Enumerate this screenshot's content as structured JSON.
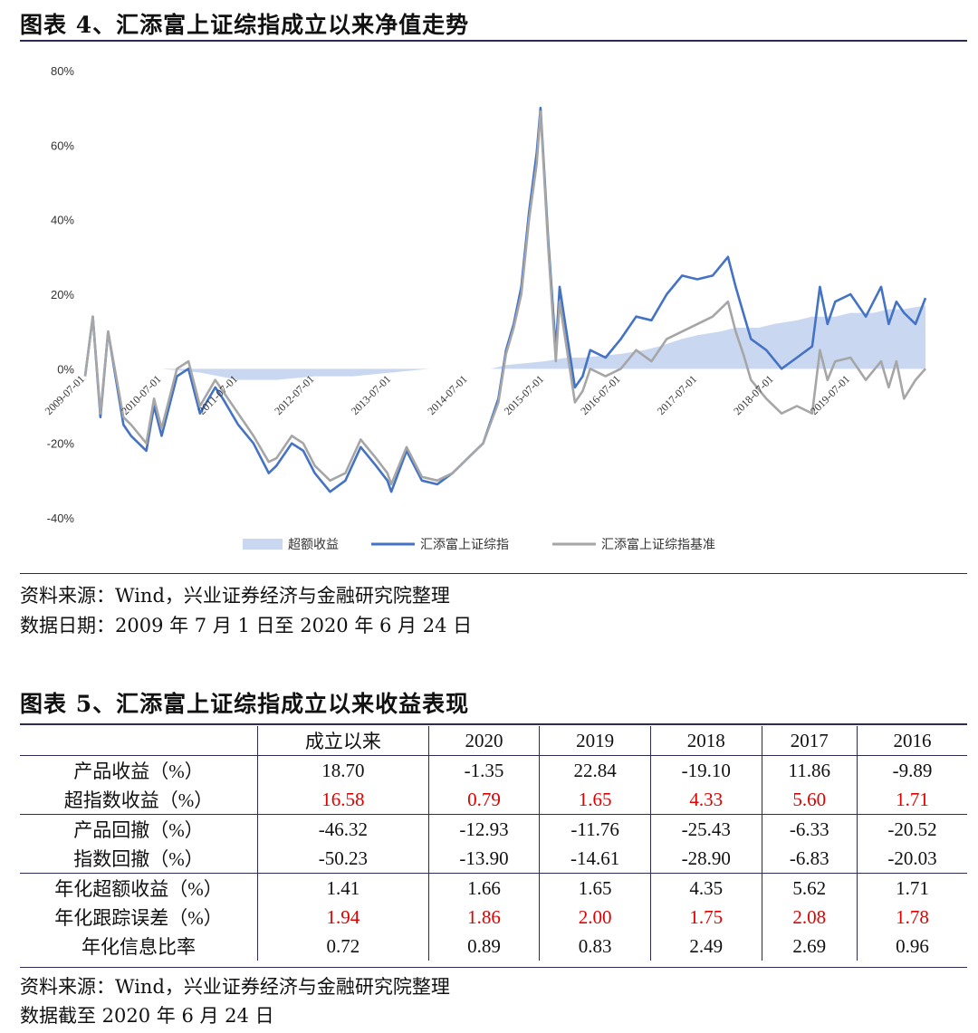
{
  "fig4": {
    "title": "图表 4、汇添富上证综指成立以来净值走势",
    "source": "资料来源：Wind，兴业证券经济与金融研究院整理",
    "date_note": "数据日期：2009 年 7 月 1 日至 2020 年 6 月 24 日"
  },
  "chart_data": {
    "type": "line",
    "title": "",
    "xlabel": "",
    "ylabel": "",
    "ylim": [
      -0.4,
      0.8
    ],
    "y_ticks": [
      "80%",
      "60%",
      "40%",
      "20%",
      "0%",
      "-20%",
      "-40%"
    ],
    "y_tick_values": [
      0.8,
      0.6,
      0.4,
      0.2,
      0.0,
      -0.2,
      -0.4
    ],
    "x_ticks": [
      "2009-07-01",
      "2010-07-01",
      "2011-07-01",
      "2012-07-01",
      "2013-07-01",
      "2014-07-01",
      "2015-07-01",
      "2016-07-01",
      "2017-07-01",
      "2018-07-01",
      "2019-07-01"
    ],
    "x_tick_values": [
      2009.5,
      2010.5,
      2011.5,
      2012.5,
      2013.5,
      2014.5,
      2015.5,
      2016.5,
      2017.5,
      2018.5,
      2019.5
    ],
    "xlim": [
      2009.5,
      2020.48
    ],
    "legend_position": "bottom",
    "colors": {
      "excess": "#c9d8f0",
      "fund": "#4472c4",
      "benchmark": "#a6a6a6"
    },
    "series": [
      {
        "name": "超额收益",
        "kind": "area",
        "x": [
          2009.5,
          2010.0,
          2010.5,
          2011.0,
          2011.5,
          2012.0,
          2012.5,
          2013.0,
          2013.5,
          2014.0,
          2014.5,
          2014.8,
          2015.0,
          2015.5,
          2015.8,
          2016.0,
          2016.5,
          2016.8,
          2017.0,
          2017.3,
          2017.5,
          2017.8,
          2018.0,
          2018.3,
          2018.5,
          2018.8,
          2019.0,
          2019.3,
          2019.5,
          2019.8,
          2020.0,
          2020.2,
          2020.48
        ],
        "y": [
          0.0,
          0.0,
          0.0,
          -0.01,
          -0.03,
          -0.03,
          -0.02,
          -0.02,
          -0.01,
          0.0,
          0.0,
          0.0,
          0.01,
          0.02,
          0.03,
          0.03,
          0.04,
          0.05,
          0.06,
          0.08,
          0.09,
          0.1,
          0.11,
          0.11,
          0.12,
          0.13,
          0.14,
          0.14,
          0.15,
          0.15,
          0.16,
          0.16,
          0.17
        ]
      },
      {
        "name": "汇添富上证综指",
        "kind": "line",
        "x": [
          2009.5,
          2009.6,
          2009.7,
          2009.8,
          2010.0,
          2010.1,
          2010.3,
          2010.4,
          2010.5,
          2010.7,
          2010.85,
          2011.0,
          2011.2,
          2011.3,
          2011.5,
          2011.7,
          2011.9,
          2012.0,
          2012.2,
          2012.35,
          2012.5,
          2012.7,
          2012.9,
          2013.1,
          2013.3,
          2013.45,
          2013.5,
          2013.7,
          2013.9,
          2014.1,
          2014.3,
          2014.5,
          2014.7,
          2014.9,
          2015.0,
          2015.1,
          2015.2,
          2015.3,
          2015.4,
          2015.45,
          2015.55,
          2015.65,
          2015.7,
          2015.9,
          2016.0,
          2016.1,
          2016.3,
          2016.5,
          2016.7,
          2016.9,
          2017.1,
          2017.3,
          2017.5,
          2017.7,
          2017.9,
          2018.0,
          2018.1,
          2018.2,
          2018.4,
          2018.6,
          2018.8,
          2019.0,
          2019.1,
          2019.2,
          2019.3,
          2019.5,
          2019.7,
          2019.9,
          2020.0,
          2020.1,
          2020.2,
          2020.35,
          2020.48
        ],
        "y": [
          -0.02,
          0.14,
          -0.13,
          0.1,
          -0.15,
          -0.18,
          -0.22,
          -0.1,
          -0.18,
          -0.02,
          0.0,
          -0.12,
          -0.05,
          -0.08,
          -0.15,
          -0.2,
          -0.28,
          -0.26,
          -0.2,
          -0.22,
          -0.28,
          -0.33,
          -0.3,
          -0.21,
          -0.26,
          -0.3,
          -0.33,
          -0.22,
          -0.3,
          -0.31,
          -0.28,
          -0.24,
          -0.2,
          -0.08,
          0.05,
          0.12,
          0.22,
          0.42,
          0.58,
          0.7,
          0.35,
          0.05,
          0.22,
          -0.05,
          -0.02,
          0.05,
          0.03,
          0.08,
          0.14,
          0.13,
          0.2,
          0.25,
          0.24,
          0.25,
          0.3,
          0.22,
          0.15,
          0.08,
          0.05,
          0.0,
          0.03,
          0.06,
          0.22,
          0.12,
          0.18,
          0.2,
          0.14,
          0.22,
          0.12,
          0.18,
          0.15,
          0.12,
          0.19
        ]
      },
      {
        "name": "汇添富上证综指基准",
        "kind": "line",
        "x": [
          2009.5,
          2009.6,
          2009.7,
          2009.8,
          2010.0,
          2010.1,
          2010.3,
          2010.4,
          2010.5,
          2010.7,
          2010.85,
          2011.0,
          2011.2,
          2011.3,
          2011.5,
          2011.7,
          2011.9,
          2012.0,
          2012.2,
          2012.35,
          2012.5,
          2012.7,
          2012.9,
          2013.1,
          2013.3,
          2013.45,
          2013.5,
          2013.7,
          2013.9,
          2014.1,
          2014.3,
          2014.5,
          2014.7,
          2014.9,
          2015.0,
          2015.1,
          2015.2,
          2015.3,
          2015.4,
          2015.45,
          2015.55,
          2015.65,
          2015.7,
          2015.9,
          2016.0,
          2016.1,
          2016.3,
          2016.5,
          2016.7,
          2016.9,
          2017.1,
          2017.3,
          2017.5,
          2017.7,
          2017.9,
          2018.0,
          2018.1,
          2018.2,
          2018.4,
          2018.6,
          2018.8,
          2019.0,
          2019.1,
          2019.2,
          2019.3,
          2019.5,
          2019.7,
          2019.9,
          2020.0,
          2020.1,
          2020.2,
          2020.35,
          2020.48
        ],
        "y": [
          -0.02,
          0.14,
          -0.12,
          0.1,
          -0.13,
          -0.15,
          -0.2,
          -0.08,
          -0.16,
          0.0,
          0.02,
          -0.1,
          -0.03,
          -0.06,
          -0.12,
          -0.18,
          -0.25,
          -0.24,
          -0.18,
          -0.2,
          -0.26,
          -0.3,
          -0.28,
          -0.19,
          -0.24,
          -0.28,
          -0.31,
          -0.21,
          -0.29,
          -0.3,
          -0.28,
          -0.24,
          -0.2,
          -0.09,
          0.04,
          0.11,
          0.2,
          0.4,
          0.55,
          0.69,
          0.33,
          0.02,
          0.18,
          -0.09,
          -0.06,
          0.0,
          -0.02,
          0.0,
          0.05,
          0.02,
          0.08,
          0.1,
          0.12,
          0.14,
          0.18,
          0.1,
          0.04,
          -0.03,
          -0.08,
          -0.12,
          -0.1,
          -0.12,
          0.05,
          -0.03,
          0.02,
          0.03,
          -0.03,
          0.02,
          -0.05,
          0.02,
          -0.08,
          -0.03,
          0.0
        ]
      }
    ]
  },
  "fig5": {
    "title": "图表 5、汇添富上证综指成立以来收益表现",
    "headers": [
      "",
      "成立以来",
      "2020",
      "2019",
      "2018",
      "2017",
      "2016"
    ],
    "rows": [
      {
        "label": "产品收益（%）",
        "values": [
          "18.70",
          "-1.35",
          "22.84",
          "-19.10",
          "11.86",
          "-9.89"
        ],
        "highlight": false,
        "sep": false
      },
      {
        "label": "超指数收益（%）",
        "values": [
          "16.58",
          "0.79",
          "1.65",
          "4.33",
          "5.60",
          "1.71"
        ],
        "highlight": true,
        "sep": false
      },
      {
        "label": "产品回撤（%）",
        "values": [
          "-46.32",
          "-12.93",
          "-11.76",
          "-25.43",
          "-6.33",
          "-20.52"
        ],
        "highlight": false,
        "sep": true
      },
      {
        "label": "指数回撤（%）",
        "values": [
          "-50.23",
          "-13.90",
          "-14.61",
          "-28.90",
          "-6.83",
          "-20.03"
        ],
        "highlight": false,
        "sep": false
      },
      {
        "label": "年化超额收益（%）",
        "values": [
          "1.41",
          "1.66",
          "1.65",
          "4.35",
          "5.62",
          "1.71"
        ],
        "highlight": false,
        "sep": true
      },
      {
        "label": "年化跟踪误差（%）",
        "values": [
          "1.94",
          "1.86",
          "2.00",
          "1.75",
          "2.08",
          "1.78"
        ],
        "highlight": true,
        "sep": false
      },
      {
        "label": "年化信息比率",
        "values": [
          "0.72",
          "0.89",
          "0.83",
          "2.49",
          "2.69",
          "0.96"
        ],
        "highlight": false,
        "sep": false
      }
    ],
    "source": "资料来源：Wind，兴业证券经济与金融研究院整理",
    "date_note": "数据截至 2020 年 6 月 24 日"
  }
}
